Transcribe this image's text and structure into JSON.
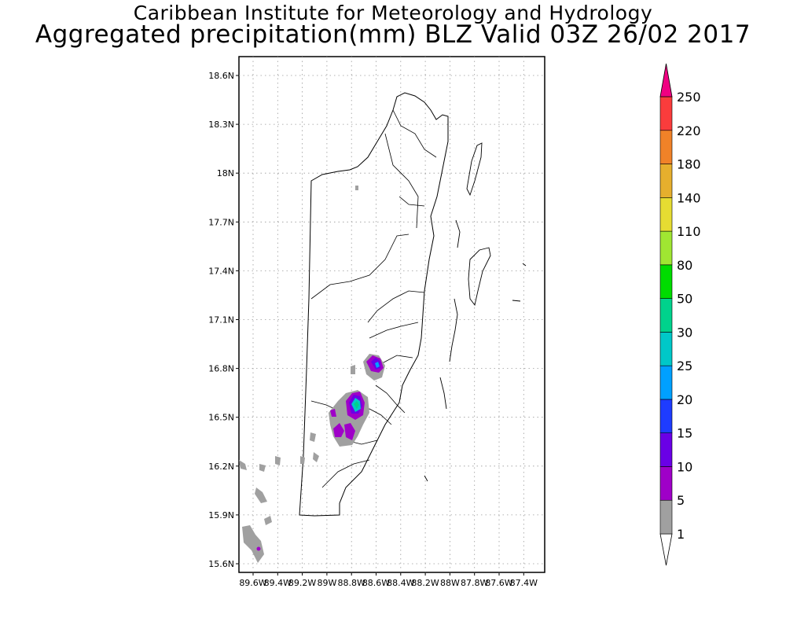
{
  "title": {
    "line1": "Caribbean Institute for Meteorology and Hydrology",
    "line2": "Aggregated precipitation(mm) BLZ Valid 03Z 26/02 2017"
  },
  "map": {
    "lat_ticks": [
      "18.6N",
      "18.3N",
      "18N",
      "17.7N",
      "17.4N",
      "17.1N",
      "16.8N",
      "16.5N",
      "16.2N",
      "15.9N",
      "15.6N"
    ],
    "lon_ticks": [
      "89.6W",
      "89.4W",
      "89.2W",
      "89W",
      "88.8W",
      "88.6W",
      "88.4W",
      "88.2W",
      "88W",
      "87.8W",
      "87.6W",
      "87.4W"
    ],
    "region": "Belize"
  },
  "colorbar": {
    "levels": [
      "1",
      "5",
      "10",
      "15",
      "20",
      "25",
      "30",
      "50",
      "80",
      "110",
      "140",
      "180",
      "220",
      "250"
    ],
    "colors": [
      "#ffffff",
      "#a0a0a0",
      "#9f00c8",
      "#6a00e6",
      "#1e3cff",
      "#00a0ff",
      "#00c8c8",
      "#00d28c",
      "#00dc00",
      "#a0e632",
      "#e6dc32",
      "#e6af2d",
      "#f08228",
      "#fa3c3c",
      "#f00082"
    ]
  },
  "precip_areas": [
    {
      "name": "precip-cell-north",
      "lon": -88.62,
      "lat": 16.82,
      "max_level": "15"
    },
    {
      "name": "precip-cell-central",
      "lon": -88.79,
      "lat": 16.55,
      "max_level": "30"
    },
    {
      "name": "precip-cell-south-a",
      "lon": -88.86,
      "lat": 16.41,
      "max_level": "10"
    },
    {
      "name": "precip-cell-south-b",
      "lon": -88.74,
      "lat": 16.39,
      "max_level": "10"
    },
    {
      "name": "precip-cell-sw",
      "lon": -89.58,
      "lat": 15.68,
      "max_level": "10"
    }
  ]
}
